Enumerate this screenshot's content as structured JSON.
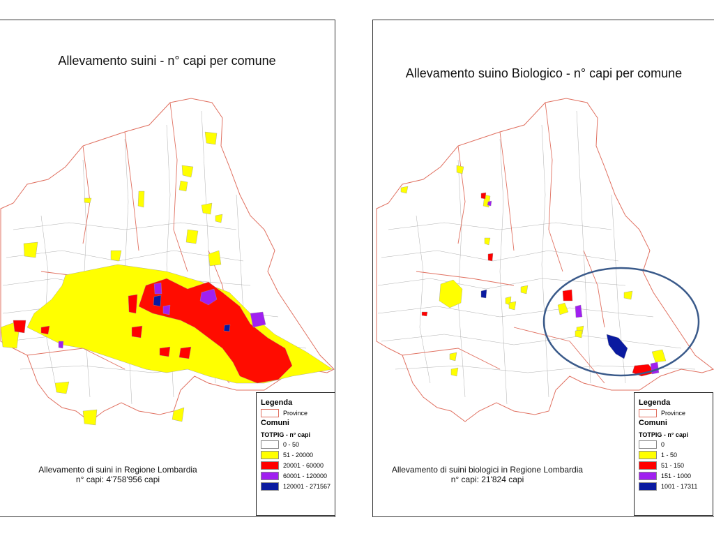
{
  "left_map": {
    "title": "Allevamento suini - n° capi per comune",
    "caption_line1": "Allevamento di suini in Regione Lombardia",
    "caption_line2": "n° capi: 4'758'956 capi",
    "legend": {
      "title": "Legenda",
      "province_label": "Province",
      "comuni_label": "Comuni",
      "field_label": "TOTPIG - n° capi",
      "classes": [
        {
          "label": "0 - 50",
          "color": "#ffffff"
        },
        {
          "label": "51 - 20000",
          "color": "#ffff00"
        },
        {
          "label": "20001 - 60000",
          "color": "#ff0000"
        },
        {
          "label": "60001 - 120000",
          "color": "#a020f0"
        },
        {
          "label": "120001 - 271567",
          "color": "#0a1aa0"
        }
      ]
    }
  },
  "right_map": {
    "title": "Allevamento suino Biologico - n° capi per comune",
    "caption_line1": "Allevamento di suini biologici in Regione Lombardia",
    "caption_line2": "n° capi: 21'824 capi",
    "legend": {
      "title": "Legenda",
      "province_label": "Province",
      "comuni_label": "Comuni",
      "field_label": "TOTPIG - n° capi",
      "classes": [
        {
          "label": "0",
          "color": "#ffffff"
        },
        {
          "label": "1 - 50",
          "color": "#ffff00"
        },
        {
          "label": "51 - 150",
          "color": "#ff0000"
        },
        {
          "label": "151 - 1000",
          "color": "#a020f0"
        },
        {
          "label": "1001 - 17311",
          "color": "#0a1aa0"
        }
      ]
    }
  },
  "colors": {
    "province_border": "#e07060",
    "comune_border": "#9a9a9a",
    "highlight_ellipse": "#3a5a8a"
  }
}
